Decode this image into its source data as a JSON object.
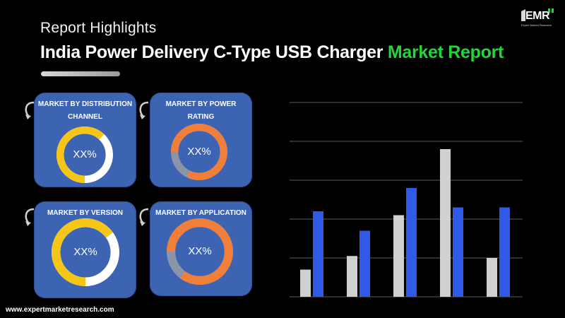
{
  "header": {
    "subtitle": "Report Highlights",
    "title_main": "India Power Delivery C-Type USB Charger",
    "title_accent": "Market Report"
  },
  "logo": {
    "text": "EMR",
    "tagline": "Expert Market Research"
  },
  "cards": [
    {
      "title": "MARKET BY DISTRIBUTION CHANNEL",
      "value": "XX%",
      "fill_fraction": 0.62,
      "ring_color": "#f5c518"
    },
    {
      "title": "MARKET BY POWER RATING",
      "value": "XX%",
      "fill_fraction": 0.82,
      "ring_color": "#f07f3c"
    },
    {
      "title": "MARKET BY VERSION",
      "value": "XX%",
      "fill_fraction": 0.65,
      "ring_color": "#f5c518"
    },
    {
      "title": "MARKET BY APPLICATION",
      "value": "XX%",
      "fill_fraction": 0.85,
      "ring_color": "#f07f3c"
    }
  ],
  "footer": {
    "url": "www.expertmarketresearch.com"
  },
  "colors": {
    "accent": "#22d63a",
    "card": "#3d63b3",
    "ring_track": "#8c95a8",
    "series_gray": "#d0d0d0",
    "series_blue": "#2f5ae6"
  },
  "chart_data": {
    "type": "bar",
    "categories": [
      "",
      "",
      "",
      "",
      ""
    ],
    "series": [
      {
        "values": [
          0.7,
          1.05,
          2.1,
          3.8,
          1.0
        ]
      },
      {
        "values": [
          2.2,
          1.7,
          2.8,
          2.3,
          2.3
        ]
      }
    ],
    "ylim": [
      0,
      5
    ],
    "grid": true,
    "gridlines": 5
  }
}
